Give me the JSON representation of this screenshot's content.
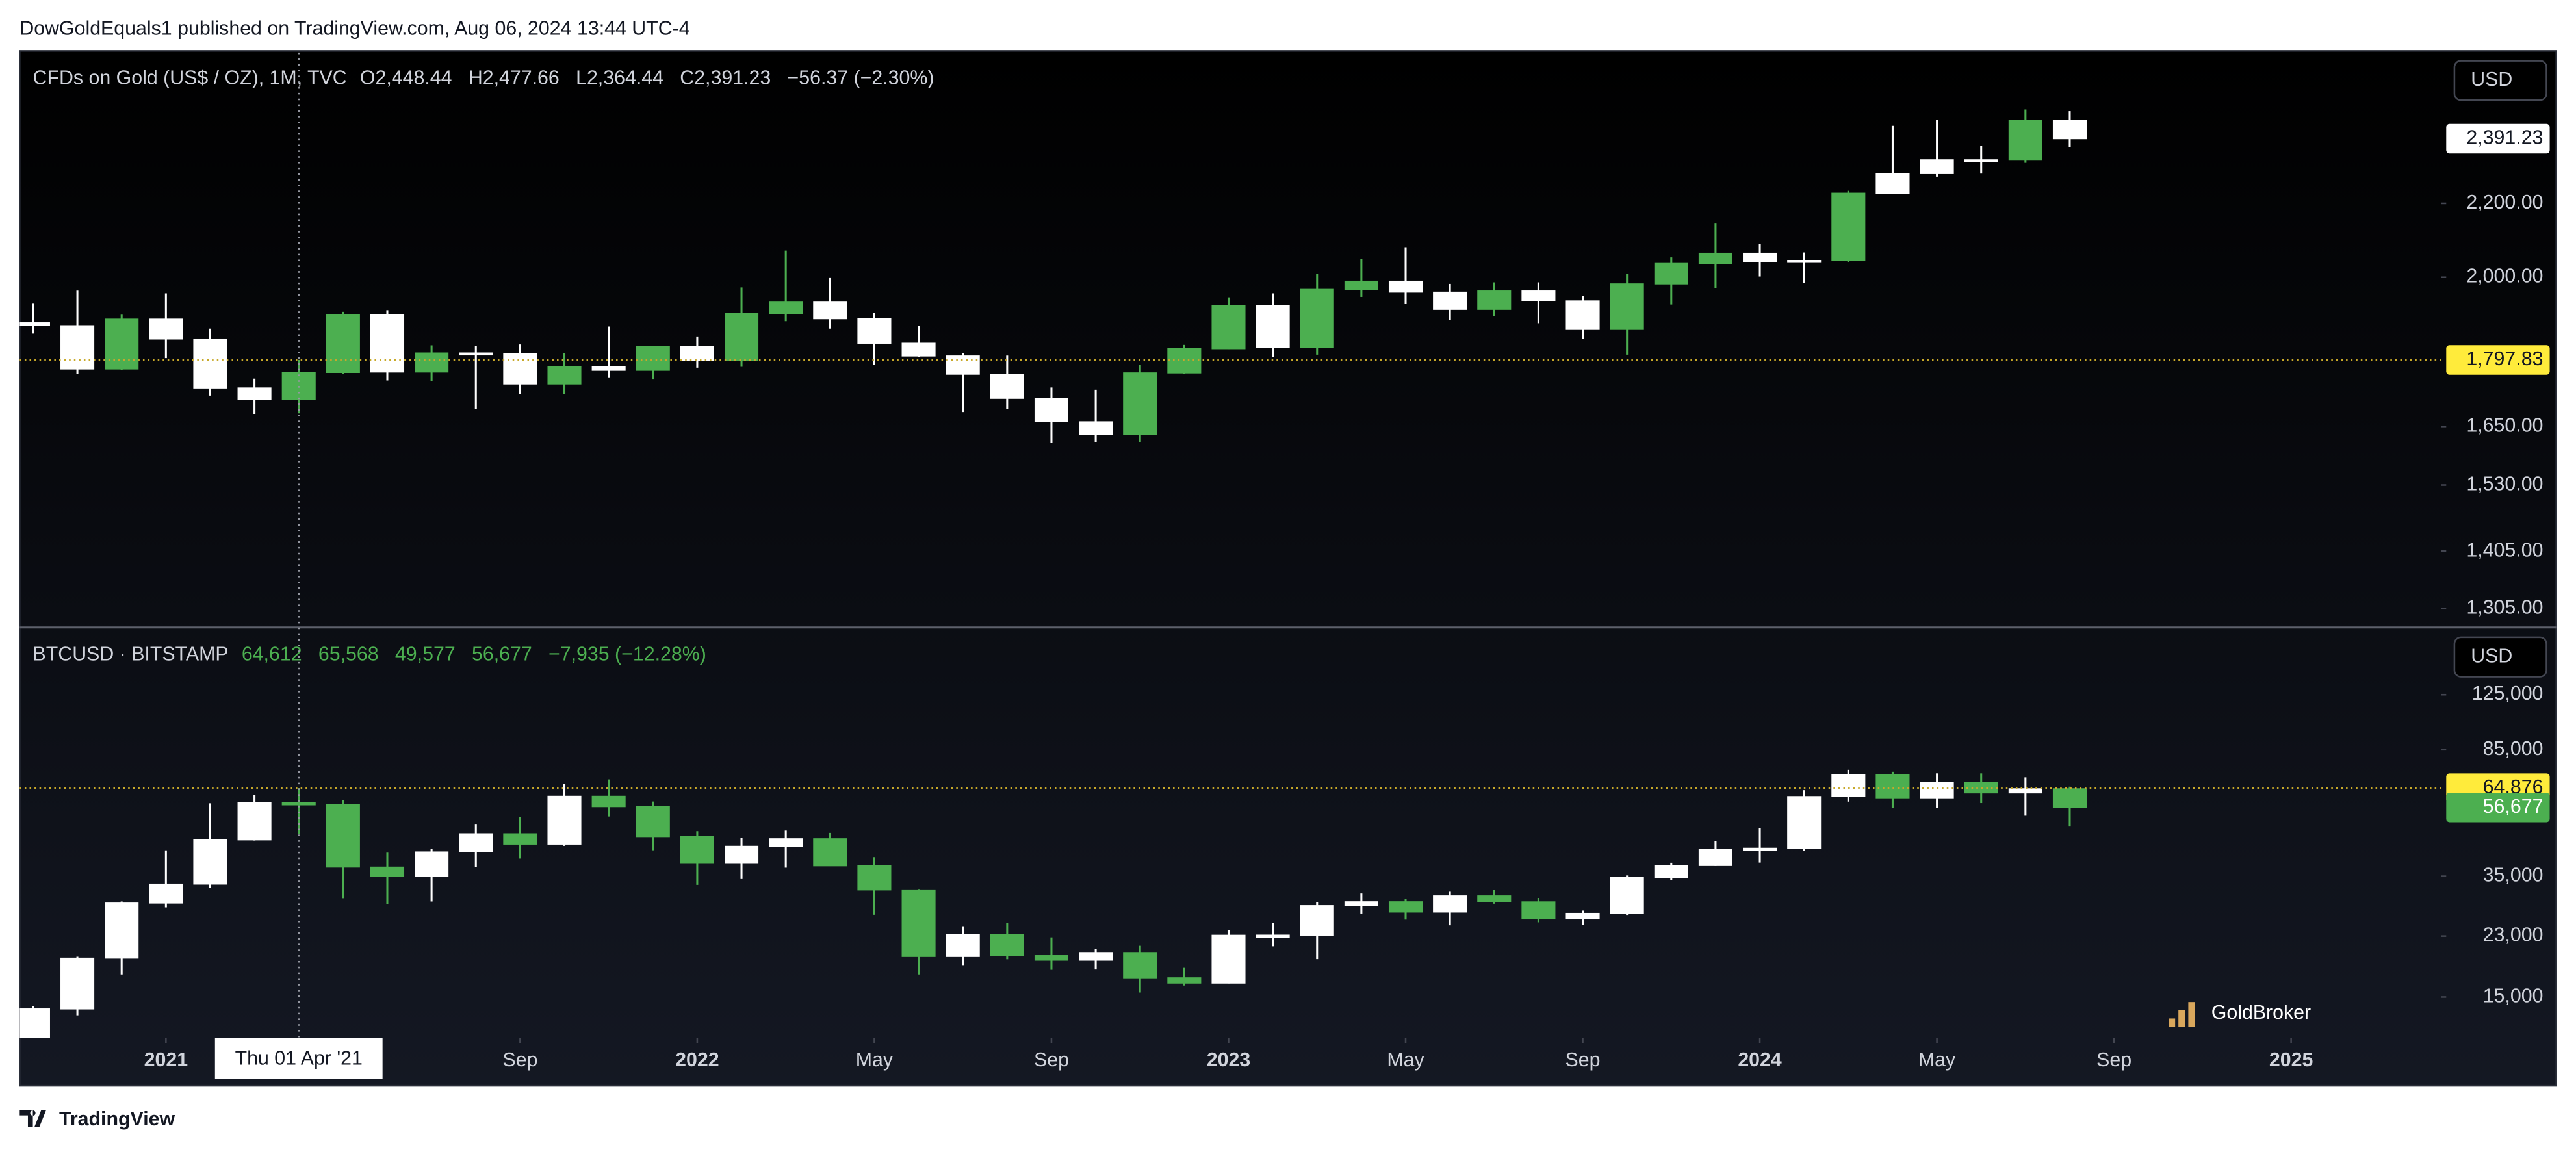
{
  "header": "DowGoldEquals1 published on TradingView.com, Aug 06, 2024 13:44 UTC-4",
  "footer": "TradingView",
  "watermark": "GoldBroker",
  "time_axis": {
    "xticks": [
      {
        "value": "2021-01",
        "label": "2021"
      },
      {
        "value": "2021-09",
        "label": "Sep"
      },
      {
        "value": "2022-01",
        "label": "2022"
      },
      {
        "value": "2022-05",
        "label": "May"
      },
      {
        "value": "2022-09",
        "label": "Sep"
      },
      {
        "value": "2023-01",
        "label": "2023"
      },
      {
        "value": "2023-05",
        "label": "May"
      },
      {
        "value": "2023-09",
        "label": "Sep"
      },
      {
        "value": "2024-01",
        "label": "2024"
      },
      {
        "value": "2024-05",
        "label": "May"
      },
      {
        "value": "2024-09",
        "label": "Sep"
      },
      {
        "value": "2025-01",
        "label": "2025"
      }
    ],
    "crosshair": {
      "value": "2021-04",
      "label": "Thu 01 Apr '21"
    }
  },
  "chart_data": [
    {
      "type": "candlestick",
      "symbol": "CFDs on Gold (US$ / OZ), 1M, TVC",
      "legend_values": [
        "O2,448.44",
        "H2,477.66",
        "L2,364.44",
        "C2,391.23",
        "−56.37 (−2.30%)"
      ],
      "legend_color": "#d1d4dc",
      "currency": "USD",
      "log": true,
      "grid": false,
      "ylim": [
        1276,
        2672
      ],
      "yticks": [
        {
          "value": 2200,
          "label": "2,200.00"
        },
        {
          "value": 2000,
          "label": "2,000.00"
        },
        {
          "value": 1650,
          "label": "1,650.00"
        },
        {
          "value": 1530,
          "label": "1,530.00"
        },
        {
          "value": 1405,
          "label": "1,405.00"
        },
        {
          "value": 1305,
          "label": "1,305.00"
        }
      ],
      "last_price": {
        "value": 2391.23,
        "label": "2,391.23",
        "color": "#ffffff",
        "text_color": "#131722"
      },
      "crosshair_price": {
        "value": 1797.83,
        "label": "1,797.83",
        "color": "#ffeb3b",
        "text_color": "#131722"
      },
      "x": [
        "2020-10",
        "2020-11",
        "2020-12",
        "2021-01",
        "2021-02",
        "2021-03",
        "2021-04",
        "2021-05",
        "2021-06",
        "2021-07",
        "2021-08",
        "2021-09",
        "2021-10",
        "2021-11",
        "2021-12",
        "2022-01",
        "2022-02",
        "2022-03",
        "2022-04",
        "2022-05",
        "2022-06",
        "2022-07",
        "2022-08",
        "2022-09",
        "2022-10",
        "2022-11",
        "2022-12",
        "2023-01",
        "2023-02",
        "2023-03",
        "2023-04",
        "2023-05",
        "2023-06",
        "2023-07",
        "2023-08",
        "2023-09",
        "2023-10",
        "2023-11",
        "2023-12",
        "2024-01",
        "2024-02",
        "2024-03",
        "2024-04",
        "2024-05",
        "2024-06",
        "2024-07",
        "2024-08"
      ],
      "open": [
        1886,
        1879,
        1777,
        1895,
        1847,
        1734,
        1708,
        1769,
        1906,
        1770,
        1814,
        1813,
        1743,
        1783,
        1774,
        1829,
        1796,
        1909,
        1937,
        1896,
        1837,
        1807,
        1765,
        1711,
        1660,
        1633,
        1768,
        1824,
        1928,
        1827,
        1969,
        1990,
        1962,
        1919,
        1965,
        1940,
        1870,
        1983,
        2036,
        2063,
        2040,
        2044,
        2229,
        2286,
        2327,
        2326,
        2448.44
      ],
      "high": [
        1933,
        1966,
        1906,
        1959,
        1872,
        1755,
        1798,
        1913,
        1917,
        1832,
        1831,
        1834,
        1814,
        1877,
        1831,
        1853,
        1974,
        2070,
        1998,
        1910,
        1879,
        1814,
        1808,
        1735,
        1730,
        1786,
        1833,
        1949,
        1959,
        2009,
        2048,
        2079,
        1983,
        1987,
        1987,
        1953,
        2009,
        2052,
        2145,
        2088,
        2065,
        2236,
        2431,
        2450,
        2369,
        2483,
        2477.66
      ],
      "low": [
        1860,
        1765,
        1775,
        1802,
        1717,
        1677,
        1678,
        1766,
        1751,
        1750,
        1688,
        1721,
        1721,
        1758,
        1753,
        1780,
        1782,
        1890,
        1872,
        1787,
        1805,
        1681,
        1688,
        1615,
        1617,
        1617,
        1765,
        1823,
        1805,
        1810,
        1950,
        1932,
        1893,
        1903,
        1885,
        1848,
        1810,
        1931,
        1973,
        2002,
        1985,
        2039,
        2228,
        2277,
        2286,
        2318,
        2364.44
      ],
      "close": [
        1879,
        1777,
        1895,
        1847,
        1734,
        1708,
        1769,
        1906,
        1770,
        1814,
        1813,
        1743,
        1783,
        1774,
        1829,
        1796,
        1909,
        1937,
        1896,
        1837,
        1807,
        1765,
        1711,
        1660,
        1633,
        1768,
        1824,
        1928,
        1827,
        1969,
        1990,
        1962,
        1919,
        1965,
        1940,
        1870,
        1983,
        2036,
        2063,
        2040,
        2044,
        2229,
        2286,
        2327,
        2326,
        2448.44,
        2391.23
      ],
      "colors": [
        "#ffffff",
        "#ffffff",
        "#4caf50",
        "#ffffff",
        "#ffffff",
        "#ffffff",
        "#4caf50",
        "#4caf50",
        "#ffffff",
        "#4caf50",
        "#ffffff",
        "#ffffff",
        "#4caf50",
        "#ffffff",
        "#4caf50",
        "#ffffff",
        "#4caf50",
        "#4caf50",
        "#ffffff",
        "#ffffff",
        "#ffffff",
        "#ffffff",
        "#ffffff",
        "#ffffff",
        "#ffffff",
        "#4caf50",
        "#4caf50",
        "#4caf50",
        "#ffffff",
        "#4caf50",
        "#4caf50",
        "#ffffff",
        "#ffffff",
        "#4caf50",
        "#ffffff",
        "#ffffff",
        "#4caf50",
        "#4caf50",
        "#4caf50",
        "#ffffff",
        "#ffffff",
        "#4caf50",
        "#ffffff",
        "#ffffff",
        "#ffffff",
        "#4caf50",
        "#ffffff"
      ]
    },
    {
      "type": "candlestick",
      "symbol": "BTCUSD · BITSTAMP",
      "legend_values": [
        "64,612",
        "65,568",
        "49,577",
        "56,677",
        "−7,935 (−12.28%)"
      ],
      "legend_color": "#4caf50",
      "currency": "USD",
      "log": true,
      "grid": false,
      "ylim": [
        11240,
        198000
      ],
      "yticks": [
        {
          "value": 125000,
          "label": "125,000"
        },
        {
          "value": 85000,
          "label": "85,000"
        },
        {
          "value": 35000,
          "label": "35,000"
        },
        {
          "value": 23000,
          "label": "23,000"
        },
        {
          "value": 15000,
          "label": "15,000"
        }
      ],
      "last_price": {
        "value": 56677,
        "label": "56,677",
        "color": "#4caf50",
        "text_color": "#ffffff"
      },
      "crosshair_price": {
        "value": 64876,
        "label": "64,876",
        "color": "#ffeb3b",
        "text_color": "#131722"
      },
      "x": [
        "2020-10",
        "2020-11",
        "2020-12",
        "2021-01",
        "2021-02",
        "2021-03",
        "2021-04",
        "2021-05",
        "2021-06",
        "2021-07",
        "2021-08",
        "2021-09",
        "2021-10",
        "2021-11",
        "2021-12",
        "2022-01",
        "2022-02",
        "2022-03",
        "2022-04",
        "2022-05",
        "2022-06",
        "2022-07",
        "2022-08",
        "2022-09",
        "2022-10",
        "2022-11",
        "2022-12",
        "2023-01",
        "2023-02",
        "2023-03",
        "2023-04",
        "2023-05",
        "2023-06",
        "2023-07",
        "2023-08",
        "2023-09",
        "2023-10",
        "2023-11",
        "2023-12",
        "2024-01",
        "2024-02",
        "2024-03",
        "2024-04",
        "2024-05",
        "2024-06",
        "2024-07",
        "2024-08"
      ],
      "open": [
        10776,
        13797,
        19700,
        28990,
        33110,
        45160,
        58780,
        57720,
        37300,
        35040,
        41490,
        47130,
        43830,
        61300,
        57000,
        46210,
        38480,
        43160,
        45510,
        37640,
        31790,
        19930,
        23290,
        20050,
        19420,
        20490,
        17160,
        16540,
        23130,
        23150,
        28470,
        29250,
        27220,
        30480,
        29230,
        25940,
        26970,
        34660,
        37720,
        42290,
        42580,
        61170,
        71330,
        60640,
        67540,
        62760,
        64612
      ],
      "high": [
        14100,
        19890,
        29300,
        41950,
        58350,
        61780,
        64900,
        59590,
        41300,
        42400,
        50500,
        52900,
        67000,
        69000,
        59100,
        47990,
        45850,
        48200,
        47420,
        39990,
        31990,
        24640,
        25200,
        22790,
        20990,
        21480,
        18400,
        23960,
        25250,
        29180,
        31000,
        29830,
        31390,
        31800,
        30050,
        27500,
        35190,
        38450,
        44760,
        48970,
        64000,
        73800,
        72790,
        71990,
        71980,
        70020,
        65568
      ],
      "low": [
        10370,
        13195,
        17570,
        28130,
        32300,
        44950,
        47000,
        30000,
        28800,
        29300,
        37300,
        39600,
        43300,
        53200,
        41970,
        32930,
        34320,
        37150,
        37560,
        26700,
        17570,
        18760,
        19550,
        18150,
        18190,
        15480,
        16260,
        16490,
        21410,
        19570,
        26940,
        25820,
        24800,
        28860,
        25330,
        24900,
        26560,
        34100,
        37600,
        38500,
        41880,
        59040,
        56550,
        56610,
        58440,
        53500,
        49577
      ],
      "close": [
        13797,
        19700,
        28990,
        33110,
        45160,
        58780,
        57720,
        37300,
        35040,
        41490,
        47130,
        43830,
        61300,
        57000,
        46210,
        38480,
        43160,
        45510,
        37640,
        31790,
        19930,
        23290,
        20050,
        19420,
        20490,
        17160,
        16540,
        23130,
        23150,
        28470,
        29250,
        27220,
        30480,
        29230,
        25940,
        26970,
        34660,
        37720,
        42290,
        42580,
        61170,
        71330,
        60640,
        67540,
        62760,
        64612,
        56677
      ],
      "colors": [
        "#ffffff",
        "#ffffff",
        "#ffffff",
        "#ffffff",
        "#ffffff",
        "#ffffff",
        "#4caf50",
        "#4caf50",
        "#4caf50",
        "#ffffff",
        "#ffffff",
        "#4caf50",
        "#ffffff",
        "#4caf50",
        "#4caf50",
        "#4caf50",
        "#ffffff",
        "#ffffff",
        "#4caf50",
        "#4caf50",
        "#4caf50",
        "#ffffff",
        "#4caf50",
        "#4caf50",
        "#ffffff",
        "#4caf50",
        "#4caf50",
        "#ffffff",
        "#ffffff",
        "#ffffff",
        "#ffffff",
        "#4caf50",
        "#ffffff",
        "#4caf50",
        "#4caf50",
        "#ffffff",
        "#ffffff",
        "#ffffff",
        "#ffffff",
        "#ffffff",
        "#ffffff",
        "#ffffff",
        "#4caf50",
        "#ffffff",
        "#4caf50",
        "#ffffff",
        "#4caf50"
      ]
    }
  ]
}
